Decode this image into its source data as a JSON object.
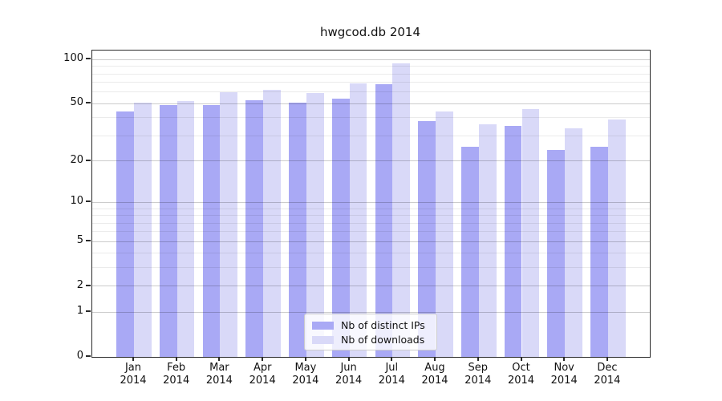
{
  "chart_data": {
    "type": "bar",
    "title": "hwgcod.db 2014",
    "yscale": "log1p",
    "ylim": [
      0,
      115
    ],
    "yticks": [
      0,
      1,
      2,
      5,
      10,
      20,
      50,
      100
    ],
    "minor_gridlines": [
      3,
      4,
      6,
      7,
      8,
      9,
      30,
      40,
      60,
      70,
      80,
      90
    ],
    "grid": "on",
    "legend_position": "lower center",
    "categories": [
      {
        "month": "Jan",
        "year": "2014"
      },
      {
        "month": "Feb",
        "year": "2014"
      },
      {
        "month": "Mar",
        "year": "2014"
      },
      {
        "month": "Apr",
        "year": "2014"
      },
      {
        "month": "May",
        "year": "2014"
      },
      {
        "month": "Jun",
        "year": "2014"
      },
      {
        "month": "Jul",
        "year": "2014"
      },
      {
        "month": "Aug",
        "year": "2014"
      },
      {
        "month": "Sep",
        "year": "2014"
      },
      {
        "month": "Oct",
        "year": "2014"
      },
      {
        "month": "Nov",
        "year": "2014"
      },
      {
        "month": "Dec",
        "year": "2014"
      }
    ],
    "series": [
      {
        "name": "Nb of distinct IPs",
        "color": "#a9a9f5",
        "values": [
          44,
          49,
          49,
          53,
          51,
          54,
          68,
          38,
          25,
          35,
          24,
          25
        ]
      },
      {
        "name": "Nb of downloads",
        "color": "#d9d9f8",
        "values": [
          51,
          52,
          60,
          62,
          59,
          69,
          94,
          44,
          36,
          46,
          34,
          39
        ]
      }
    ],
    "colors": {
      "major_grid": "rgba(0,0,0,0.20)",
      "minor_grid": "rgba(0,0,0,0.08)",
      "spine": "#2a2a2a",
      "text": "#111111"
    }
  }
}
